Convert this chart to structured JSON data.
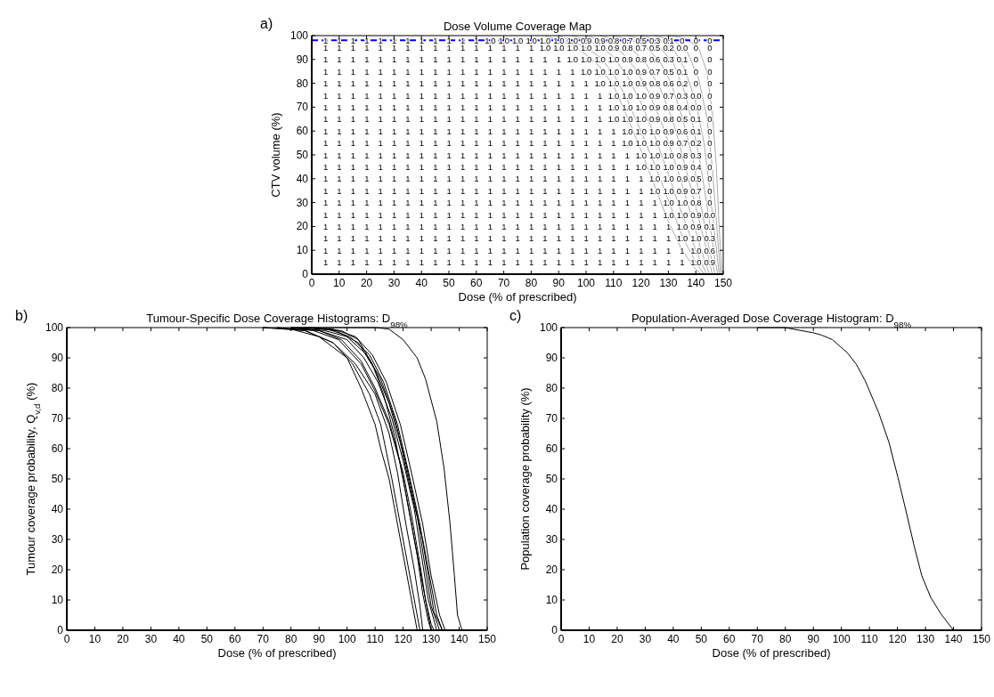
{
  "chart_data": [
    {
      "type": "heatmap",
      "title": "Dose Volume Coverage Map",
      "xlabel": "Dose (% of prescribed)",
      "ylabel": "CTV volume (%)",
      "annotations": [
        "a)"
      ],
      "xlim": [
        0,
        150
      ],
      "ylim": [
        0,
        100
      ],
      "xticks": [
        0,
        10,
        20,
        30,
        40,
        50,
        60,
        70,
        80,
        90,
        100,
        110,
        120,
        130,
        140,
        150
      ],
      "yticks": [
        0,
        10,
        20,
        30,
        40,
        50,
        60,
        70,
        80,
        90,
        100
      ],
      "x": [
        5,
        10,
        15,
        20,
        25,
        30,
        35,
        40,
        45,
        50,
        55,
        60,
        65,
        70,
        75,
        80,
        85,
        90,
        95,
        100,
        105,
        110,
        115,
        120,
        125,
        130,
        135,
        140,
        145
      ],
      "y": [
        98,
        95,
        90,
        85,
        80,
        75,
        70,
        65,
        60,
        55,
        50,
        45,
        40,
        35,
        30,
        25,
        20,
        15,
        10,
        5
      ],
      "cells": [
        [
          1,
          1,
          1,
          1,
          1,
          1,
          1,
          1,
          1,
          1,
          1,
          1,
          1,
          1,
          1,
          1,
          1,
          1,
          1,
          0.9,
          0.9,
          0.8,
          0.7,
          0.5,
          0.3,
          0.1,
          0,
          0,
          0
        ],
        [
          1,
          1,
          1,
          1,
          1,
          1,
          1,
          1,
          1,
          1,
          1,
          1,
          1,
          1,
          1,
          1,
          1,
          1,
          1,
          1,
          1,
          0.9,
          0.8,
          0.7,
          0.5,
          0.2,
          0,
          0,
          0
        ],
        [
          1,
          1,
          1,
          1,
          1,
          1,
          1,
          1,
          1,
          1,
          1,
          1,
          1,
          1,
          1,
          1,
          1,
          1,
          1,
          1,
          1,
          1,
          0.9,
          0.8,
          0.6,
          0.3,
          0.1,
          0,
          0
        ],
        [
          1,
          1,
          1,
          1,
          1,
          1,
          1,
          1,
          1,
          1,
          1,
          1,
          1,
          1,
          1,
          1,
          1,
          1,
          1,
          1,
          1,
          1,
          1,
          0.9,
          0.7,
          0.5,
          0.1,
          0,
          0
        ],
        [
          1,
          1,
          1,
          1,
          1,
          1,
          1,
          1,
          1,
          1,
          1,
          1,
          1,
          1,
          1,
          1,
          1,
          1,
          1,
          1,
          1,
          1,
          1,
          0.9,
          0.8,
          0.6,
          0.2,
          0,
          0
        ],
        [
          1,
          1,
          1,
          1,
          1,
          1,
          1,
          1,
          1,
          1,
          1,
          1,
          1,
          1,
          1,
          1,
          1,
          1,
          1,
          1,
          1,
          1,
          1,
          1,
          0.9,
          0.7,
          0.3,
          0,
          0
        ],
        [
          1,
          1,
          1,
          1,
          1,
          1,
          1,
          1,
          1,
          1,
          1,
          1,
          1,
          1,
          1,
          1,
          1,
          1,
          1,
          1,
          1,
          1,
          1,
          1,
          0.9,
          0.8,
          0.4,
          0,
          0
        ],
        [
          1,
          1,
          1,
          1,
          1,
          1,
          1,
          1,
          1,
          1,
          1,
          1,
          1,
          1,
          1,
          1,
          1,
          1,
          1,
          1,
          1,
          1,
          1,
          1,
          0.9,
          0.8,
          0.5,
          0.1,
          0
        ],
        [
          1,
          1,
          1,
          1,
          1,
          1,
          1,
          1,
          1,
          1,
          1,
          1,
          1,
          1,
          1,
          1,
          1,
          1,
          1,
          1,
          1,
          1,
          1,
          1,
          1,
          0.9,
          0.6,
          0.1,
          0
        ],
        [
          1,
          1,
          1,
          1,
          1,
          1,
          1,
          1,
          1,
          1,
          1,
          1,
          1,
          1,
          1,
          1,
          1,
          1,
          1,
          1,
          1,
          1,
          1,
          1,
          1,
          0.9,
          0.7,
          0.2,
          0
        ],
        [
          1,
          1,
          1,
          1,
          1,
          1,
          1,
          1,
          1,
          1,
          1,
          1,
          1,
          1,
          1,
          1,
          1,
          1,
          1,
          1,
          1,
          1,
          1,
          1,
          1,
          1,
          0.8,
          0.3,
          0
        ],
        [
          1,
          1,
          1,
          1,
          1,
          1,
          1,
          1,
          1,
          1,
          1,
          1,
          1,
          1,
          1,
          1,
          1,
          1,
          1,
          1,
          1,
          1,
          1,
          1,
          1,
          1,
          0.9,
          0.4,
          0
        ],
        [
          1,
          1,
          1,
          1,
          1,
          1,
          1,
          1,
          1,
          1,
          1,
          1,
          1,
          1,
          1,
          1,
          1,
          1,
          1,
          1,
          1,
          1,
          1,
          1,
          1,
          1,
          0.9,
          0.5,
          0
        ],
        [
          1,
          1,
          1,
          1,
          1,
          1,
          1,
          1,
          1,
          1,
          1,
          1,
          1,
          1,
          1,
          1,
          1,
          1,
          1,
          1,
          1,
          1,
          1,
          1,
          1,
          1,
          0.9,
          0.7,
          0
        ],
        [
          1,
          1,
          1,
          1,
          1,
          1,
          1,
          1,
          1,
          1,
          1,
          1,
          1,
          1,
          1,
          1,
          1,
          1,
          1,
          1,
          1,
          1,
          1,
          1,
          1,
          1,
          1,
          0.8,
          0
        ],
        [
          1,
          1,
          1,
          1,
          1,
          1,
          1,
          1,
          1,
          1,
          1,
          1,
          1,
          1,
          1,
          1,
          1,
          1,
          1,
          1,
          1,
          1,
          1,
          1,
          1,
          1,
          1,
          0.9,
          0
        ],
        [
          1,
          1,
          1,
          1,
          1,
          1,
          1,
          1,
          1,
          1,
          1,
          1,
          1,
          1,
          1,
          1,
          1,
          1,
          1,
          1,
          1,
          1,
          1,
          1,
          1,
          1,
          1,
          0.9,
          0.1
        ],
        [
          1,
          1,
          1,
          1,
          1,
          1,
          1,
          1,
          1,
          1,
          1,
          1,
          1,
          1,
          1,
          1,
          1,
          1,
          1,
          1,
          1,
          1,
          1,
          1,
          1,
          1,
          1,
          1,
          0.3
        ],
        [
          1,
          1,
          1,
          1,
          1,
          1,
          1,
          1,
          1,
          1,
          1,
          1,
          1,
          1,
          1,
          1,
          1,
          1,
          1,
          1,
          1,
          1,
          1,
          1,
          1,
          1,
          1,
          1,
          0.6
        ],
        [
          1,
          1,
          1,
          1,
          1,
          1,
          1,
          1,
          1,
          1,
          1,
          1,
          1,
          1,
          1,
          1,
          1,
          1,
          1,
          1,
          1,
          1,
          1,
          1,
          1,
          1,
          1,
          1,
          0.9
        ]
      ],
      "cell_labels": [
        [
          "1",
          "1",
          "1",
          "1",
          "1",
          "1",
          "1",
          "1",
          "1",
          "1",
          "1",
          "1",
          "1.0",
          "1.0",
          "1.0",
          "1.0",
          "1.0",
          "1.0",
          "1.0",
          "0.9",
          "0.9",
          "0.8",
          "0.7",
          "0.5",
          "0.3",
          "0.1",
          "0",
          "0",
          "0"
        ],
        [
          "1",
          "1",
          "1",
          "1",
          "1",
          "1",
          "1",
          "1",
          "1",
          "1",
          "1",
          "1",
          "1",
          "1",
          "1",
          "1",
          "1.0",
          "1.0",
          "1.0",
          "1.0",
          "1.0",
          "0.9",
          "0.8",
          "0.7",
          "0.5",
          "0.2",
          "0.0",
          "0",
          "0"
        ],
        [
          "1",
          "1",
          "1",
          "1",
          "1",
          "1",
          "1",
          "1",
          "1",
          "1",
          "1",
          "1",
          "1",
          "1",
          "1",
          "1",
          "1",
          "1",
          "1.0",
          "1.0",
          "1.0",
          "1.0",
          "0.9",
          "0.8",
          "0.6",
          "0.3",
          "0.1",
          "0",
          "0"
        ],
        [
          "1",
          "1",
          "1",
          "1",
          "1",
          "1",
          "1",
          "1",
          "1",
          "1",
          "1",
          "1",
          "1",
          "1",
          "1",
          "1",
          "1",
          "1",
          "1",
          "1.0",
          "1.0",
          "1.0",
          "1.0",
          "0.9",
          "0.7",
          "0.5",
          "0.1",
          "0",
          "0"
        ],
        [
          "1",
          "1",
          "1",
          "1",
          "1",
          "1",
          "1",
          "1",
          "1",
          "1",
          "1",
          "1",
          "1",
          "1",
          "1",
          "1",
          "1",
          "1",
          "1",
          "1",
          "1.0",
          "1.0",
          "1.0",
          "0.9",
          "0.8",
          "0.6",
          "0.2",
          "0",
          "0"
        ],
        [
          "1",
          "1",
          "1",
          "1",
          "1",
          "1",
          "1",
          "1",
          "1",
          "1",
          "1",
          "1",
          "1",
          "1",
          "1",
          "1",
          "1",
          "1",
          "1",
          "1",
          "1",
          "1.0",
          "1.0",
          "1.0",
          "0.9",
          "0.7",
          "0.3",
          "0.0",
          "0"
        ],
        [
          "1",
          "1",
          "1",
          "1",
          "1",
          "1",
          "1",
          "1",
          "1",
          "1",
          "1",
          "1",
          "1",
          "1",
          "1",
          "1",
          "1",
          "1",
          "1",
          "1",
          "1",
          "1.0",
          "1.0",
          "1.0",
          "0.9",
          "0.8",
          "0.4",
          "0.0",
          "0"
        ],
        [
          "1",
          "1",
          "1",
          "1",
          "1",
          "1",
          "1",
          "1",
          "1",
          "1",
          "1",
          "1",
          "1",
          "1",
          "1",
          "1",
          "1",
          "1",
          "1",
          "1",
          "1",
          "1.0",
          "1.0",
          "1.0",
          "0.9",
          "0.8",
          "0.5",
          "0.1",
          "0"
        ],
        [
          "1",
          "1",
          "1",
          "1",
          "1",
          "1",
          "1",
          "1",
          "1",
          "1",
          "1",
          "1",
          "1",
          "1",
          "1",
          "1",
          "1",
          "1",
          "1",
          "1",
          "1",
          "1",
          "1.0",
          "1.0",
          "1.0",
          "0.9",
          "0.6",
          "0.1",
          "0"
        ],
        [
          "1",
          "1",
          "1",
          "1",
          "1",
          "1",
          "1",
          "1",
          "1",
          "1",
          "1",
          "1",
          "1",
          "1",
          "1",
          "1",
          "1",
          "1",
          "1",
          "1",
          "1",
          "1",
          "1.0",
          "1.0",
          "1.0",
          "0.9",
          "0.7",
          "0.2",
          "0"
        ],
        [
          "1",
          "1",
          "1",
          "1",
          "1",
          "1",
          "1",
          "1",
          "1",
          "1",
          "1",
          "1",
          "1",
          "1",
          "1",
          "1",
          "1",
          "1",
          "1",
          "1",
          "1",
          "1",
          "1",
          "1.0",
          "1.0",
          "1.0",
          "0.8",
          "0.3",
          "0"
        ],
        [
          "1",
          "1",
          "1",
          "1",
          "1",
          "1",
          "1",
          "1",
          "1",
          "1",
          "1",
          "1",
          "1",
          "1",
          "1",
          "1",
          "1",
          "1",
          "1",
          "1",
          "1",
          "1",
          "1",
          "1.0",
          "1.0",
          "1.0",
          "0.9",
          "0.4",
          "0"
        ],
        [
          "1",
          "1",
          "1",
          "1",
          "1",
          "1",
          "1",
          "1",
          "1",
          "1",
          "1",
          "1",
          "1",
          "1",
          "1",
          "1",
          "1",
          "1",
          "1",
          "1",
          "1",
          "1",
          "1",
          "1",
          "1.0",
          "1.0",
          "0.9",
          "0.5",
          "0"
        ],
        [
          "1",
          "1",
          "1",
          "1",
          "1",
          "1",
          "1",
          "1",
          "1",
          "1",
          "1",
          "1",
          "1",
          "1",
          "1",
          "1",
          "1",
          "1",
          "1",
          "1",
          "1",
          "1",
          "1",
          "1",
          "1.0",
          "1.0",
          "0.9",
          "0.7",
          "0"
        ],
        [
          "1",
          "1",
          "1",
          "1",
          "1",
          "1",
          "1",
          "1",
          "1",
          "1",
          "1",
          "1",
          "1",
          "1",
          "1",
          "1",
          "1",
          "1",
          "1",
          "1",
          "1",
          "1",
          "1",
          "1",
          "1",
          "1.0",
          "1.0",
          "0.8",
          "0"
        ],
        [
          "1",
          "1",
          "1",
          "1",
          "1",
          "1",
          "1",
          "1",
          "1",
          "1",
          "1",
          "1",
          "1",
          "1",
          "1",
          "1",
          "1",
          "1",
          "1",
          "1",
          "1",
          "1",
          "1",
          "1",
          "1",
          "1.0",
          "1.0",
          "0.9",
          "0.0"
        ],
        [
          "1",
          "1",
          "1",
          "1",
          "1",
          "1",
          "1",
          "1",
          "1",
          "1",
          "1",
          "1",
          "1",
          "1",
          "1",
          "1",
          "1",
          "1",
          "1",
          "1",
          "1",
          "1",
          "1",
          "1",
          "1",
          "1",
          "1.0",
          "0.9",
          "0.1"
        ],
        [
          "1",
          "1",
          "1",
          "1",
          "1",
          "1",
          "1",
          "1",
          "1",
          "1",
          "1",
          "1",
          "1",
          "1",
          "1",
          "1",
          "1",
          "1",
          "1",
          "1",
          "1",
          "1",
          "1",
          "1",
          "1",
          "1",
          "1.0",
          "1.0",
          "0.3"
        ],
        [
          "1",
          "1",
          "1",
          "1",
          "1",
          "1",
          "1",
          "1",
          "1",
          "1",
          "1",
          "1",
          "1",
          "1",
          "1",
          "1",
          "1",
          "1",
          "1",
          "1",
          "1",
          "1",
          "1",
          "1",
          "1",
          "1",
          "1",
          "1.0",
          "0.6"
        ],
        [
          "1",
          "1",
          "1",
          "1",
          "1",
          "1",
          "1",
          "1",
          "1",
          "1",
          "1",
          "1",
          "1",
          "1",
          "1",
          "1",
          "1",
          "1",
          "1",
          "1",
          "1",
          "1",
          "1",
          "1",
          "1",
          "1",
          "1",
          "1.0",
          "0.9"
        ]
      ],
      "ref_lines": [
        {
          "axis": "y",
          "value": 98,
          "color": "#0000ff",
          "line_style": "dashed"
        }
      ],
      "series": [
        {
          "type": "line",
          "color": "#aaaaaa",
          "x": [
            85,
            95,
            100,
            105,
            110,
            115,
            120,
            125,
            130,
            135,
            140,
            142
          ],
          "values": [
            100,
            96,
            92,
            87,
            79,
            66,
            52,
            37,
            22,
            10,
            2,
            0
          ]
        },
        {
          "type": "line",
          "color": "#aaaaaa",
          "x": [
            90,
            100,
            105,
            110,
            115,
            120,
            125,
            130,
            135,
            140,
            143
          ],
          "values": [
            100,
            95,
            91,
            84,
            73,
            60,
            46,
            31,
            16,
            5,
            0
          ]
        },
        {
          "type": "line",
          "color": "#aaaaaa",
          "x": [
            95,
            105,
            110,
            115,
            120,
            125,
            130,
            135,
            140,
            144
          ],
          "values": [
            100,
            96,
            91,
            83,
            72,
            58,
            42,
            25,
            10,
            0
          ]
        },
        {
          "type": "line",
          "color": "#aaaaaa",
          "x": [
            100,
            108,
            113,
            118,
            123,
            128,
            133,
            138,
            142,
            145
          ],
          "values": [
            100,
            97,
            93,
            86,
            76,
            62,
            45,
            26,
            10,
            0
          ]
        },
        {
          "type": "line",
          "color": "#aaaaaa",
          "x": [
            105,
            112,
            117,
            122,
            127,
            132,
            136,
            140,
            144,
            146
          ],
          "values": [
            100,
            98,
            94,
            88,
            78,
            63,
            46,
            28,
            10,
            0
          ]
        },
        {
          "type": "line",
          "color": "#aaaaaa",
          "x": [
            110,
            117,
            122,
            127,
            131,
            135,
            139,
            142,
            145,
            147
          ],
          "values": [
            100,
            98,
            95,
            89,
            80,
            66,
            48,
            28,
            10,
            0
          ]
        },
        {
          "type": "line",
          "color": "#aaaaaa",
          "x": [
            115,
            122,
            127,
            132,
            136,
            139,
            142,
            145,
            147,
            148
          ],
          "values": [
            100,
            98,
            95,
            88,
            76,
            62,
            44,
            22,
            6,
            0
          ]
        },
        {
          "type": "line",
          "color": "#aaaaaa",
          "x": [
            120,
            127,
            132,
            136,
            140,
            143,
            145,
            147,
            148.5
          ],
          "values": [
            100,
            98,
            94,
            86,
            72,
            55,
            36,
            16,
            0
          ]
        },
        {
          "type": "line",
          "color": "#aaaaaa",
          "x": [
            125,
            132,
            137,
            141,
            144,
            146,
            147.5,
            149
          ],
          "values": [
            100,
            98,
            93,
            82,
            66,
            45,
            22,
            0
          ]
        },
        {
          "type": "line",
          "color": "#aaaaaa",
          "x": [
            130,
            136,
            141,
            144,
            146,
            147.5,
            148.5,
            149.5
          ],
          "values": [
            100,
            99,
            95,
            85,
            68,
            45,
            20,
            0
          ]
        }
      ]
    },
    {
      "type": "line",
      "title": "Tumour-Specific Dose Coverage Histograms: D$_{98%}$",
      "xlabel": "Dose (% of prescribed)",
      "ylabel": "Tumour coverage probability, Q$_{v,d}$ (%)",
      "annotations": [
        "b)"
      ],
      "xlim": [
        0,
        150
      ],
      "ylim": [
        0,
        100
      ],
      "xticks": [
        0,
        10,
        20,
        30,
        40,
        50,
        60,
        70,
        80,
        90,
        100,
        110,
        120,
        130,
        140,
        150
      ],
      "yticks": [
        0,
        10,
        20,
        30,
        40,
        50,
        60,
        70,
        80,
        90,
        100
      ],
      "series": [
        {
          "color": "#000000",
          "x": [
            70,
            80,
            90,
            100,
            105,
            110,
            112,
            115,
            118,
            120,
            122,
            124,
            125
          ],
          "values": [
            100,
            99.5,
            97,
            90,
            80,
            68,
            60,
            50,
            35,
            25,
            15,
            5,
            0
          ]
        },
        {
          "color": "#000000",
          "x": [
            70,
            85,
            95,
            102,
            108,
            112,
            116,
            119,
            122,
            124,
            126
          ],
          "values": [
            100,
            99,
            95,
            88,
            78,
            68,
            50,
            35,
            20,
            10,
            0
          ]
        },
        {
          "color": "#000000",
          "x": [
            75,
            85,
            95,
            103,
            110,
            115,
            118,
            121,
            124,
            126,
            127
          ],
          "values": [
            100,
            99,
            95,
            88,
            78,
            65,
            52,
            35,
            20,
            8,
            0
          ]
        },
        {
          "color": "#000000",
          "x": [
            75,
            88,
            97,
            105,
            110,
            115,
            119,
            122,
            125,
            127,
            129,
            130
          ],
          "values": [
            100,
            99,
            96,
            88,
            79,
            68,
            55,
            40,
            25,
            12,
            3,
            0
          ]
        },
        {
          "color": "#000000",
          "x": [
            80,
            90,
            98,
            105,
            110,
            115,
            120,
            123,
            126,
            128,
            130,
            131
          ],
          "values": [
            100,
            99,
            96,
            89,
            80,
            69,
            52,
            38,
            22,
            10,
            2,
            0
          ]
        },
        {
          "color": "#000000",
          "x": [
            80,
            90,
            100,
            106,
            111,
            116,
            120,
            124,
            127,
            129,
            132
          ],
          "values": [
            100,
            99,
            96,
            90,
            82,
            70,
            56,
            40,
            22,
            10,
            0
          ]
        },
        {
          "color": "#000000",
          "x": [
            80,
            92,
            100,
            107,
            112,
            117,
            121,
            125,
            128,
            130,
            133
          ],
          "values": [
            100,
            99,
            97,
            91,
            83,
            70,
            55,
            38,
            20,
            8,
            0
          ]
        },
        {
          "color": "#000000",
          "x": [
            82,
            93,
            101,
            108,
            113,
            118,
            122,
            126,
            129,
            131,
            134
          ],
          "values": [
            100,
            99.5,
            97,
            91,
            82,
            68,
            52,
            35,
            18,
            6,
            0
          ]
        },
        {
          "color": "#000000",
          "x": [
            85,
            95,
            103,
            109,
            114,
            119,
            123,
            127,
            130,
            133,
            135
          ],
          "values": [
            100,
            99.5,
            97,
            91,
            82,
            68,
            52,
            35,
            18,
            5,
            0
          ]
        },
        {
          "color": "#000000",
          "x": [
            85,
            96,
            104,
            110,
            115,
            119,
            123,
            127,
            130,
            132,
            134
          ],
          "values": [
            100,
            99,
            95,
            86,
            75,
            62,
            45,
            30,
            15,
            5,
            0
          ]
        },
        {
          "color": "#000000",
          "x": [
            86,
            98,
            104,
            109,
            113,
            117,
            121,
            125,
            128,
            130
          ],
          "values": [
            100,
            99,
            96,
            88,
            78,
            64,
            45,
            25,
            10,
            0
          ]
        },
        {
          "color": "#000000",
          "x": [
            80,
            110,
            115,
            120,
            125,
            128,
            132,
            134.6,
            136.7,
            138.3,
            139.4,
            141
          ],
          "values": [
            100,
            100,
            99.5,
            96,
            90,
            83,
            69,
            53.5,
            35.6,
            18,
            5,
            0
          ]
        }
      ]
    },
    {
      "type": "line",
      "title": "Population-Averaged Dose Coverage Histogram: D$_{98%}$",
      "xlabel": "Dose (% of prescribed)",
      "ylabel": "Population coverage probability (%)",
      "annotations": [
        "c)"
      ],
      "xlim": [
        0,
        150
      ],
      "ylim": [
        0,
        100
      ],
      "xticks": [
        0,
        10,
        20,
        30,
        40,
        50,
        60,
        70,
        80,
        90,
        100,
        110,
        120,
        130,
        140,
        150
      ],
      "yticks": [
        0,
        10,
        20,
        30,
        40,
        50,
        60,
        70,
        80,
        90,
        100
      ],
      "series": [
        {
          "color": "#000000",
          "x": [
            70,
            79.8,
            89.9,
            93,
            96.8,
            102.1,
            105.3,
            108.5,
            113.3,
            117,
            120.2,
            122.9,
            126.1,
            128.7,
            131.9,
            135.6,
            140
          ],
          "values": [
            100,
            100,
            98.3,
            97.5,
            96,
            91.7,
            87.9,
            82.4,
            71.9,
            62,
            50.4,
            40,
            27.3,
            18,
            10.8,
            5.3,
            0
          ]
        }
      ]
    }
  ]
}
